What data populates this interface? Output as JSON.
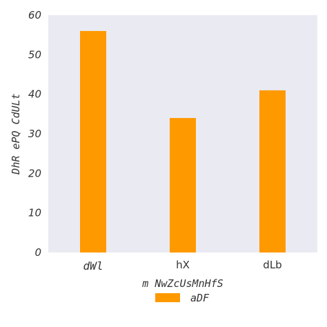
{
  "chart_data": {
    "type": "bar",
    "categories": [
      "dWl",
      "hX",
      "dLb"
    ],
    "series": [
      {
        "name": "aDF",
        "values": [
          56,
          34,
          41
        ],
        "color": "#ff9900"
      }
    ],
    "xlabel": "m NwZcUsMnHfS",
    "ylabel": "DhR  ePQ CdULt",
    "ylim": [
      0,
      60
    ],
    "yticks": [
      0,
      10,
      20,
      30,
      40,
      50,
      60
    ],
    "grid": false,
    "plot_background": "#eaeaf2",
    "legend": "bottom-center"
  }
}
